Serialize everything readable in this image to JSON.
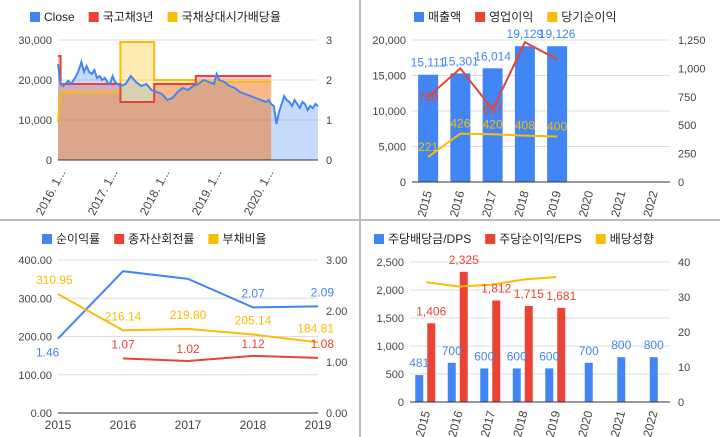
{
  "colors": {
    "blue": "#4285f4",
    "red": "#ea4335",
    "yellow": "#fbbc04",
    "grid": "#dddddd",
    "axis": "#444444"
  },
  "chart_data": [
    {
      "type": "line",
      "legend": [
        "Close",
        "국고채3년",
        "국채상대시가배당율"
      ],
      "legend_position": "top",
      "x_labels": [
        "2016. 1...",
        "2017. 1...",
        "2018. 1...",
        "2019. 1...",
        "2020. 1..."
      ],
      "x_range": [
        2016.0,
        2021.0
      ],
      "y_left_range": [
        0,
        30000
      ],
      "y_left_ticks": [
        "0",
        "10,000",
        "20,000",
        "30,000"
      ],
      "y_right_range": [
        0,
        3
      ],
      "y_right_ticks": [
        "0",
        "1",
        "2",
        "3"
      ],
      "close": [
        [
          2016.0,
          24000
        ],
        [
          2016.05,
          19000
        ],
        [
          2016.1,
          18500
        ],
        [
          2016.15,
          19200
        ],
        [
          2016.2,
          19800
        ],
        [
          2016.25,
          19000
        ],
        [
          2016.3,
          20000
        ],
        [
          2016.35,
          21000
        ],
        [
          2016.4,
          22500
        ],
        [
          2016.45,
          24500
        ],
        [
          2016.5,
          22000
        ],
        [
          2016.55,
          23500
        ],
        [
          2016.6,
          22000
        ],
        [
          2016.65,
          21500
        ],
        [
          2016.7,
          22500
        ],
        [
          2016.75,
          20500
        ],
        [
          2016.8,
          21000
        ],
        [
          2016.85,
          20000
        ],
        [
          2016.9,
          20500
        ],
        [
          2016.95,
          19500
        ],
        [
          2017.0,
          19000
        ],
        [
          2017.05,
          21000
        ],
        [
          2017.1,
          19500
        ],
        [
          2017.2,
          18500
        ],
        [
          2017.3,
          19000
        ],
        [
          2017.4,
          21000
        ],
        [
          2017.5,
          19500
        ],
        [
          2017.6,
          18500
        ],
        [
          2017.7,
          19000
        ],
        [
          2017.8,
          17500
        ],
        [
          2017.9,
          17000
        ],
        [
          2018.0,
          16500
        ],
        [
          2018.1,
          15000
        ],
        [
          2018.2,
          15500
        ],
        [
          2018.3,
          17000
        ],
        [
          2018.4,
          18000
        ],
        [
          2018.5,
          17500
        ],
        [
          2018.6,
          18500
        ],
        [
          2018.7,
          19000
        ],
        [
          2018.8,
          20000
        ],
        [
          2018.9,
          19500
        ],
        [
          2019.0,
          19000
        ],
        [
          2019.05,
          21500
        ],
        [
          2019.1,
          20000
        ],
        [
          2019.2,
          19500
        ],
        [
          2019.3,
          18500
        ],
        [
          2019.4,
          18000
        ],
        [
          2019.5,
          17000
        ],
        [
          2019.6,
          16500
        ],
        [
          2019.7,
          16000
        ],
        [
          2019.8,
          15500
        ],
        [
          2019.9,
          15000
        ],
        [
          2020.0,
          14500
        ],
        [
          2020.05,
          15000
        ],
        [
          2020.1,
          14000
        ],
        [
          2020.15,
          13500
        ],
        [
          2020.2,
          9000
        ],
        [
          2020.25,
          12000
        ],
        [
          2020.3,
          14000
        ],
        [
          2020.35,
          16000
        ],
        [
          2020.4,
          15000
        ],
        [
          2020.45,
          14500
        ],
        [
          2020.5,
          13500
        ],
        [
          2020.55,
          15000
        ],
        [
          2020.6,
          14000
        ],
        [
          2020.65,
          13000
        ],
        [
          2020.7,
          14500
        ],
        [
          2020.75,
          14000
        ],
        [
          2020.8,
          12500
        ],
        [
          2020.85,
          13500
        ],
        [
          2020.9,
          13000
        ],
        [
          2020.95,
          14000
        ],
        [
          2021.0,
          13500
        ]
      ],
      "yield_3y": [
        [
          2016.0,
          2.6
        ],
        [
          2016.05,
          2.6
        ],
        [
          2016.05,
          1.9
        ],
        [
          2017.2,
          1.9
        ],
        [
          2017.2,
          1.45
        ],
        [
          2017.85,
          1.45
        ],
        [
          2017.85,
          1.9
        ],
        [
          2018.65,
          1.9
        ],
        [
          2018.65,
          2.1
        ],
        [
          2020.1,
          2.1
        ]
      ],
      "dividend_yield": [
        [
          2016.0,
          0.95
        ],
        [
          2016.05,
          1.7
        ],
        [
          2017.2,
          1.7
        ],
        [
          2017.2,
          2.95
        ],
        [
          2017.85,
          2.95
        ],
        [
          2017.85,
          2.0
        ],
        [
          2018.65,
          2.0
        ],
        [
          2018.65,
          1.95
        ],
        [
          2020.1,
          1.95
        ]
      ]
    },
    {
      "type": "bar",
      "legend": [
        "매출액",
        "영업이익",
        "당기순이익"
      ],
      "legend_position": "top",
      "categories": [
        "2015",
        "2016",
        "2017",
        "2018",
        "2019",
        "2020",
        "2021",
        "2022"
      ],
      "y_left_range": [
        0,
        20000
      ],
      "y_left_ticks": [
        "0",
        "5,000",
        "10,000",
        "15,000",
        "20,000"
      ],
      "y_right_range": [
        0,
        1250
      ],
      "y_right_ticks": [
        "0",
        "250",
        "500",
        "750",
        "1,000",
        "1,250"
      ],
      "series": [
        {
          "name": "매출액",
          "type": "bar",
          "axis": "left",
          "values": [
            15111,
            15301,
            16014,
            19129,
            19126,
            null,
            null,
            null
          ],
          "labels": [
            "15,111",
            "15,301",
            "16,014",
            "19,129",
            "19,126",
            "",
            "",
            ""
          ]
        },
        {
          "name": "영업이익",
          "type": "line",
          "axis": "right",
          "values": [
            750,
            1000,
            637,
            1230,
            1080,
            null,
            null,
            null
          ],
          "labels": [
            "750",
            "",
            "637",
            "",
            "",
            "",
            "",
            ""
          ]
        },
        {
          "name": "당기순이익",
          "type": "line",
          "axis": "right",
          "values": [
            221,
            426,
            420,
            408,
            400,
            null,
            null,
            null
          ],
          "labels": [
            "221",
            "426",
            "420",
            "408",
            "400",
            "",
            "",
            ""
          ]
        }
      ]
    },
    {
      "type": "line",
      "legend": [
        "순이익률",
        "종자산회전률",
        "부채비율"
      ],
      "legend_position": "top",
      "categories": [
        "2015",
        "2016",
        "2017",
        "2018",
        "2019"
      ],
      "y_left_range": [
        0,
        400
      ],
      "y_left_ticks": [
        "0.00",
        "100.00",
        "200.00",
        "300.00",
        "400.00"
      ],
      "y_right_range": [
        0,
        3
      ],
      "y_right_ticks": [
        "0.00",
        "1.00",
        "2.00",
        "3.00"
      ],
      "series": [
        {
          "name": "순이익률",
          "axis": "right",
          "values": [
            1.46,
            2.78,
            2.63,
            2.07,
            2.09
          ],
          "labels": [
            "1.46",
            "",
            "",
            "2.07",
            "2.09"
          ]
        },
        {
          "name": "종자산회전률",
          "axis": "right",
          "values": [
            null,
            1.07,
            1.02,
            1.12,
            1.08
          ],
          "labels": [
            "",
            "1.07",
            "1.02",
            "1.12",
            "1.08"
          ]
        },
        {
          "name": "부채비율",
          "axis": "left",
          "values": [
            310.95,
            216.14,
            219.8,
            205.14,
            184.81
          ],
          "labels": [
            "310.95",
            "216.14",
            "219.80",
            "205.14",
            "184.81"
          ]
        }
      ]
    },
    {
      "type": "bar",
      "legend": [
        "주당배당금/DPS",
        "주당순이익/EPS",
        "배당성향"
      ],
      "legend_position": "top",
      "categories": [
        "2015",
        "2016",
        "2017",
        "2018",
        "2019",
        "2020",
        "2021",
        "2022"
      ],
      "y_left_range": [
        0,
        2500
      ],
      "y_left_ticks": [
        "0",
        "500",
        "1,000",
        "1,500",
        "2,000",
        "2,500"
      ],
      "y_right_range": [
        0,
        40
      ],
      "y_right_ticks": [
        "0",
        "10",
        "20",
        "30",
        "40"
      ],
      "series": [
        {
          "name": "주당배당금/DPS",
          "type": "bar",
          "axis": "left",
          "values": [
            481,
            700,
            600,
            600,
            600,
            700,
            800,
            800
          ],
          "labels": [
            "481",
            "700",
            "600",
            "600",
            "600",
            "700",
            "800",
            "800"
          ]
        },
        {
          "name": "주당순이익/EPS",
          "type": "bar",
          "axis": "left",
          "values": [
            1406,
            2325,
            1812,
            1715,
            1681,
            null,
            null,
            null
          ],
          "labels": [
            "1,406",
            "2,325",
            "1,812",
            "1,715",
            "1,681",
            "",
            "",
            ""
          ]
        },
        {
          "name": "배당성향",
          "type": "line",
          "axis": "right",
          "values": [
            34.2,
            33.0,
            33.5,
            35.0,
            35.7,
            null,
            null,
            null
          ],
          "labels": [
            "",
            "",
            "",
            "",
            "",
            "",
            "",
            ""
          ]
        }
      ]
    }
  ]
}
